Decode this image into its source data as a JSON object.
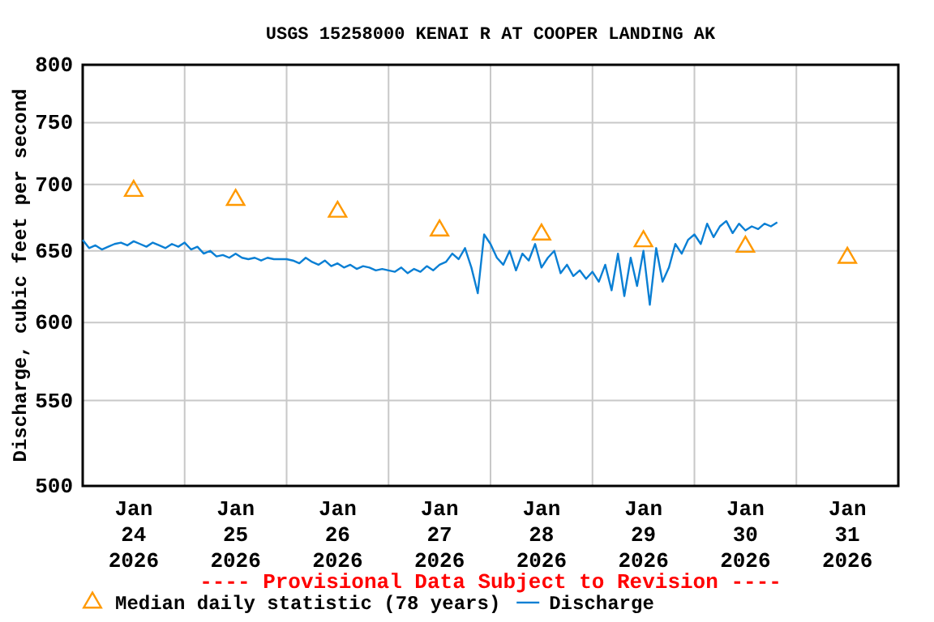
{
  "chart_data": {
    "type": "line",
    "title": "USGS 15258000 KENAI R AT COOPER LANDING AK",
    "ylabel": "Discharge, cubic feet per second",
    "log": "y",
    "ylim": [
      500,
      800
    ],
    "yticks": [
      500,
      550,
      600,
      650,
      700,
      750,
      800
    ],
    "xlim": [
      "2026-01-24T00:00",
      "2026-02-01T00:00"
    ],
    "xticks": [
      {
        "value": "2026-01-24T00:00",
        "label": null
      },
      {
        "value": "2026-01-24T12:00",
        "label": "Jan 24 2026"
      },
      {
        "value": "2026-01-25T00:00",
        "label": null
      },
      {
        "value": "2026-01-25T12:00",
        "label": "Jan 25 2026"
      },
      {
        "value": "2026-01-26T00:00",
        "label": null
      },
      {
        "value": "2026-01-26T12:00",
        "label": "Jan 26 2026"
      },
      {
        "value": "2026-01-27T00:00",
        "label": null
      },
      {
        "value": "2026-01-27T12:00",
        "label": "Jan 27 2026"
      },
      {
        "value": "2026-01-28T00:00",
        "label": null
      },
      {
        "value": "2026-01-28T12:00",
        "label": "Jan 28 2026"
      },
      {
        "value": "2026-01-29T00:00",
        "label": null
      },
      {
        "value": "2026-01-29T12:00",
        "label": "Jan 29 2026"
      },
      {
        "value": "2026-01-30T00:00",
        "label": null
      },
      {
        "value": "2026-01-30T12:00",
        "label": "Jan 30 2026"
      },
      {
        "value": "2026-01-31T00:00",
        "label": null
      },
      {
        "value": "2026-01-31T12:00",
        "label": "Jan 31 2026"
      },
      {
        "value": "2026-02-01T00:00",
        "label": null
      }
    ],
    "grid": true,
    "legend": "bottom",
    "annotations": [
      "---- Provisional Data Subject to Revision ----"
    ],
    "series": [
      {
        "name": "Median daily statistic (78 years)",
        "type": "scatter",
        "marker": "triangle",
        "color": "#ff9900",
        "x": [
          "2026-01-24T12:00",
          "2026-01-25T12:00",
          "2026-01-26T12:00",
          "2026-01-27T12:00",
          "2026-01-28T12:00",
          "2026-01-29T12:00",
          "2026-01-30T12:00",
          "2026-01-31T12:00"
        ],
        "values": [
          695,
          688,
          679,
          665,
          662,
          657,
          653,
          645
        ]
      },
      {
        "name": "Discharge",
        "color": "#0a7fd4",
        "x": [
          "2026-01-24T00:00",
          "2026-01-24T01:30",
          "2026-01-24T03:00",
          "2026-01-24T04:30",
          "2026-01-24T06:00",
          "2026-01-24T07:30",
          "2026-01-24T09:00",
          "2026-01-24T10:30",
          "2026-01-24T12:00",
          "2026-01-24T13:30",
          "2026-01-24T15:00",
          "2026-01-24T16:30",
          "2026-01-24T18:00",
          "2026-01-24T19:30",
          "2026-01-24T21:00",
          "2026-01-24T22:30",
          "2026-01-25T00:00",
          "2026-01-25T01:30",
          "2026-01-25T03:00",
          "2026-01-25T04:30",
          "2026-01-25T06:00",
          "2026-01-25T07:30",
          "2026-01-25T09:00",
          "2026-01-25T10:30",
          "2026-01-25T12:00",
          "2026-01-25T13:30",
          "2026-01-25T15:00",
          "2026-01-25T16:30",
          "2026-01-25T18:00",
          "2026-01-25T19:30",
          "2026-01-25T21:00",
          "2026-01-25T22:30",
          "2026-01-26T00:00",
          "2026-01-26T01:30",
          "2026-01-26T03:00",
          "2026-01-26T04:30",
          "2026-01-26T06:00",
          "2026-01-26T07:30",
          "2026-01-26T09:00",
          "2026-01-26T10:30",
          "2026-01-26T12:00",
          "2026-01-26T13:30",
          "2026-01-26T15:00",
          "2026-01-26T16:30",
          "2026-01-26T18:00",
          "2026-01-26T19:30",
          "2026-01-26T21:00",
          "2026-01-26T22:30",
          "2026-01-27T00:00",
          "2026-01-27T01:30",
          "2026-01-27T03:00",
          "2026-01-27T04:30",
          "2026-01-27T06:00",
          "2026-01-27T07:30",
          "2026-01-27T09:00",
          "2026-01-27T10:30",
          "2026-01-27T12:00",
          "2026-01-27T13:30",
          "2026-01-27T15:00",
          "2026-01-27T16:30",
          "2026-01-27T18:00",
          "2026-01-27T19:30",
          "2026-01-27T21:00",
          "2026-01-27T22:30",
          "2026-01-28T00:00",
          "2026-01-28T01:30",
          "2026-01-28T03:00",
          "2026-01-28T04:30",
          "2026-01-28T06:00",
          "2026-01-28T07:30",
          "2026-01-28T09:00",
          "2026-01-28T10:30",
          "2026-01-28T12:00",
          "2026-01-28T13:30",
          "2026-01-28T15:00",
          "2026-01-28T16:30",
          "2026-01-28T18:00",
          "2026-01-28T19:30",
          "2026-01-28T21:00",
          "2026-01-28T22:30",
          "2026-01-29T00:00",
          "2026-01-29T01:30",
          "2026-01-29T03:00",
          "2026-01-29T04:30",
          "2026-01-29T06:00",
          "2026-01-29T07:30",
          "2026-01-29T09:00",
          "2026-01-29T10:30",
          "2026-01-29T12:00",
          "2026-01-29T13:30",
          "2026-01-29T15:00",
          "2026-01-29T16:30",
          "2026-01-29T18:00",
          "2026-01-29T19:30",
          "2026-01-29T21:00",
          "2026-01-29T22:30",
          "2026-01-30T00:00",
          "2026-01-30T01:30",
          "2026-01-30T03:00",
          "2026-01-30T04:30",
          "2026-01-30T06:00",
          "2026-01-30T07:30",
          "2026-01-30T09:00",
          "2026-01-30T10:30",
          "2026-01-30T12:00",
          "2026-01-30T13:30",
          "2026-01-30T15:00",
          "2026-01-30T16:30",
          "2026-01-30T18:00",
          "2026-01-30T19:30"
        ],
        "values": [
          658,
          652,
          654,
          651,
          653,
          655,
          656,
          654,
          657,
          655,
          653,
          656,
          654,
          652,
          655,
          653,
          656,
          651,
          653,
          648,
          650,
          646,
          647,
          645,
          648,
          645,
          644,
          645,
          643,
          645,
          644,
          644,
          644,
          643,
          641,
          645,
          642,
          640,
          643,
          639,
          641,
          638,
          640,
          637,
          639,
          638,
          636,
          637,
          636,
          635,
          638,
          634,
          637,
          635,
          639,
          636,
          640,
          642,
          648,
          644,
          652,
          638,
          620,
          662,
          655,
          645,
          640,
          650,
          636,
          648,
          643,
          655,
          638,
          645,
          650,
          634,
          640,
          632,
          636,
          630,
          635,
          628,
          640,
          622,
          648,
          618,
          645,
          625,
          650,
          612,
          652,
          628,
          638,
          655,
          648,
          658,
          662,
          655,
          670,
          660,
          668,
          672,
          663,
          670,
          665,
          668,
          666,
          670,
          668,
          671
        ]
      }
    ]
  }
}
